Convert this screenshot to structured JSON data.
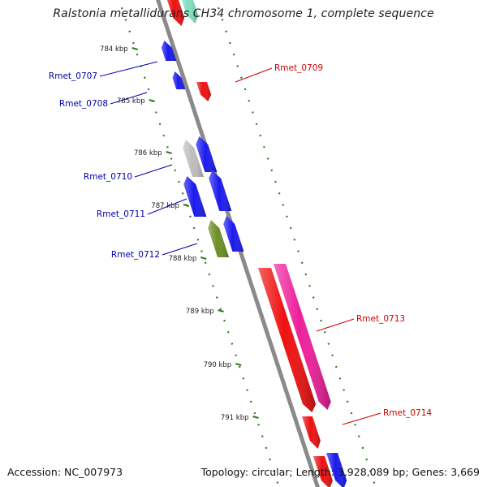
{
  "title": "Ralstonia metallidurans CH34 chromosome 1, complete sequence",
  "footer": {
    "accession": "Accession: NC_007973",
    "summary": "Topology: circular; Length: 3,928,089 bp; Genes: 3,669"
  },
  "colors": {
    "backbone": "#8a8a8a",
    "forward_label": "#cc0000",
    "reverse_label": "#0000aa",
    "tick": "#2e7d1e",
    "gene_red": "#ee1111",
    "gene_blue": "#1a1aee",
    "gene_magenta": "#ee1f9a",
    "gene_gray": "#bdbdbd",
    "gene_olive": "#6b8e23"
  },
  "kbp_ticks": [
    {
      "label": "784 kbp"
    },
    {
      "label": "785 kbp"
    },
    {
      "label": "786 kbp"
    },
    {
      "label": "787 kbp"
    },
    {
      "label": "788 kbp"
    },
    {
      "label": "789 kbp"
    },
    {
      "label": "790 kbp"
    },
    {
      "label": "791 kbp"
    }
  ],
  "gene_labels": [
    {
      "id": "Rmet_0707",
      "strand": "reverse"
    },
    {
      "id": "Rmet_0708",
      "strand": "reverse"
    },
    {
      "id": "Rmet_0709",
      "strand": "forward"
    },
    {
      "id": "Rmet_0710",
      "strand": "reverse"
    },
    {
      "id": "Rmet_0711",
      "strand": "reverse"
    },
    {
      "id": "Rmet_0712",
      "strand": "reverse"
    },
    {
      "id": "Rmet_0713",
      "strand": "forward"
    },
    {
      "id": "Rmet_0714",
      "strand": "forward"
    }
  ]
}
